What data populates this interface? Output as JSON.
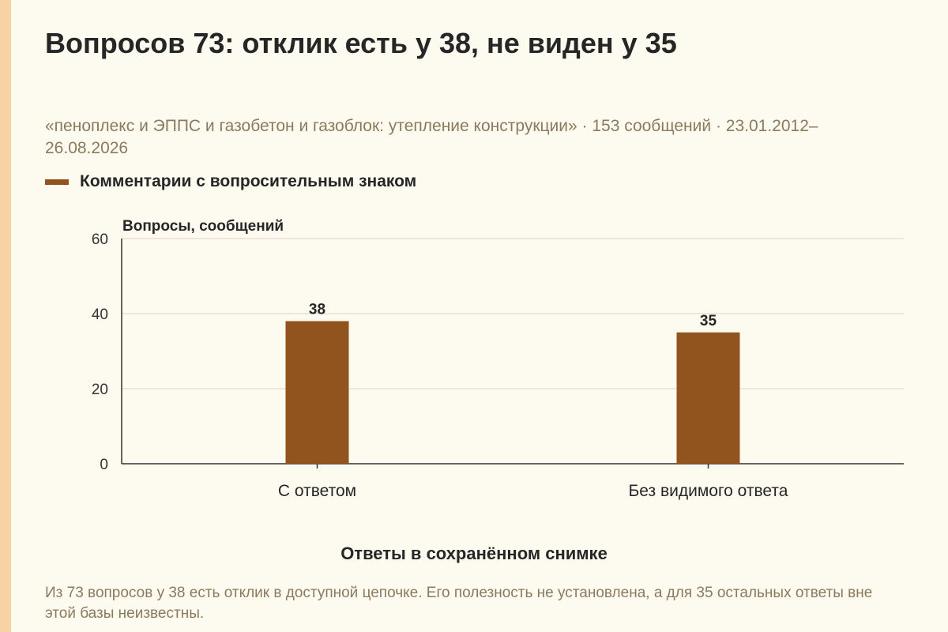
{
  "page": {
    "title": "Вопросов 73: отклик есть у 38, не виден у 35",
    "subtitle": "«пеноплекс и ЭППС и газобетон и газоблок: утепление конструкции» · 153 сообщений · 23.01.2012–26.08.2026",
    "note": "Из 73 вопросов у 38 есть отклик в доступной цепочке. Его полезность не установлена, а для 35 остальных ответы вне этой базы неизвестны.",
    "colors": {
      "bar": "#91541f",
      "accent_strip": "#f6d2a4",
      "background": "#fdfaf0"
    }
  },
  "chart_data": {
    "type": "bar",
    "categories": [
      "С ответом",
      "Без видимого ответа"
    ],
    "series": [
      {
        "name": "Комментарии с вопросительным знаком",
        "values": [
          38,
          35
        ]
      }
    ],
    "ylabel": "Вопросы, сообщений",
    "xlabel": "Ответы в сохранённом снимке",
    "ylim": [
      0,
      60
    ],
    "yticks": [
      0,
      20,
      40,
      60
    ],
    "grid": true,
    "legend": "top-left"
  }
}
